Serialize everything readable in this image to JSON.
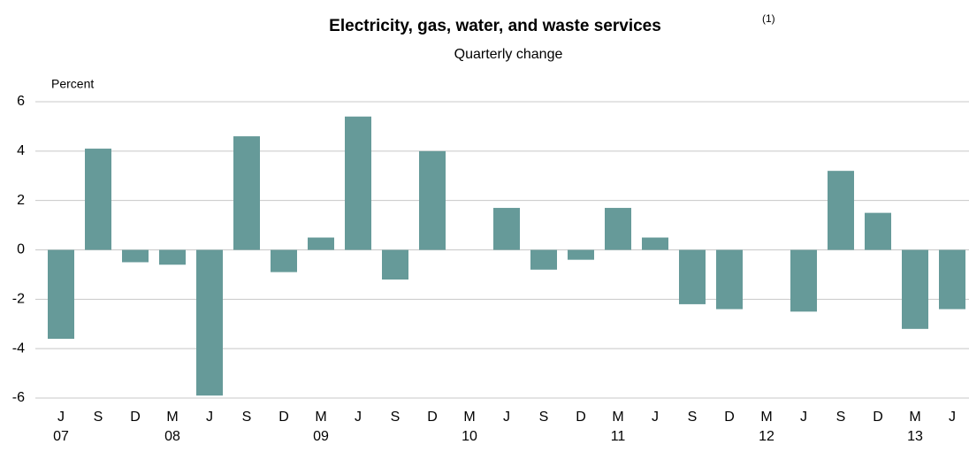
{
  "chart_data": {
    "type": "bar",
    "title": "Electricity, gas, water, and waste services",
    "title_note": "(1)",
    "subtitle": "Quarterly change",
    "y_label": "Percent",
    "categories": [
      "J",
      "S",
      "D",
      "M",
      "J",
      "S",
      "D",
      "M",
      "J",
      "S",
      "D",
      "M",
      "J",
      "S",
      "D",
      "M",
      "J",
      "S",
      "D",
      "M",
      "J",
      "S",
      "D",
      "M",
      "J"
    ],
    "year_labels": [
      "07",
      null,
      null,
      "08",
      null,
      null,
      null,
      "09",
      null,
      null,
      null,
      "10",
      null,
      null,
      null,
      "11",
      null,
      null,
      null,
      "12",
      null,
      null,
      null,
      "13",
      null
    ],
    "values": [
      -3.6,
      4.1,
      -0.5,
      -0.6,
      -5.9,
      4.6,
      -0.9,
      0.5,
      5.4,
      -1.2,
      4.0,
      0,
      1.7,
      -0.8,
      -0.4,
      1.7,
      0.5,
      -2.2,
      -2.4,
      0,
      -2.5,
      3.2,
      1.5,
      -3.2,
      -2.4
    ],
    "color": "#669a99",
    "ylim": [
      -6,
      6
    ],
    "yticks": [
      -6,
      -4,
      -2,
      0,
      2,
      4,
      6
    ],
    "grid": true
  }
}
